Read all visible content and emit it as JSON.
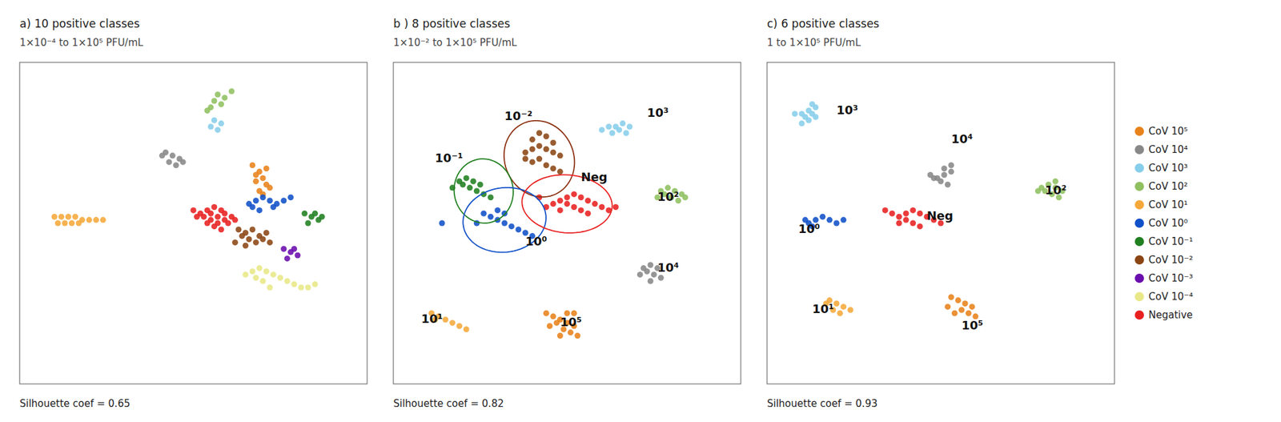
{
  "chart_data": [
    {
      "type": "scatter",
      "title": "a) 10 positive classes",
      "subtitle": "1×10⁻⁴ to 1×10⁵ PFU/mL",
      "note": "Silhouette coef  = 0.65",
      "xlim": [
        0,
        1
      ],
      "ylim": [
        0,
        1
      ],
      "tick_labels": false,
      "grid": false,
      "legend": "right",
      "series": [
        {
          "name": "CoV 10⁵",
          "color": "#E8821A",
          "x": [
            0.67,
            0.69,
            0.7,
            0.68,
            0.71,
            0.69,
            0.7,
            0.72,
            0.68,
            0.71
          ],
          "values": [
            0.68,
            0.66,
            0.64,
            0.63,
            0.62,
            0.6,
            0.59,
            0.61,
            0.65,
            0.67
          ]
        },
        {
          "name": "CoV 10⁴",
          "color": "#888888",
          "x": [
            0.42,
            0.44,
            0.46,
            0.43,
            0.45,
            0.47,
            0.41
          ],
          "values": [
            0.72,
            0.71,
            0.7,
            0.69,
            0.68,
            0.69,
            0.71
          ]
        },
        {
          "name": "CoV 10³",
          "color": "#87CEEB",
          "x": [
            0.56,
            0.58,
            0.55,
            0.57
          ],
          "values": [
            0.82,
            0.81,
            0.8,
            0.79
          ]
        },
        {
          "name": "CoV 10²",
          "color": "#90C060",
          "x": [
            0.57,
            0.59,
            0.56,
            0.58,
            0.55,
            0.61,
            0.54
          ],
          "values": [
            0.9,
            0.89,
            0.88,
            0.87,
            0.86,
            0.91,
            0.85
          ]
        },
        {
          "name": "CoV 10¹",
          "color": "#F5A83A",
          "x": [
            0.1,
            0.12,
            0.14,
            0.16,
            0.18,
            0.2,
            0.22,
            0.24,
            0.11,
            0.13,
            0.15,
            0.17
          ],
          "values": [
            0.52,
            0.52,
            0.52,
            0.52,
            0.51,
            0.51,
            0.51,
            0.51,
            0.5,
            0.5,
            0.5,
            0.5
          ]
        },
        {
          "name": "CoV 10⁰",
          "color": "#1050C8",
          "x": [
            0.66,
            0.68,
            0.7,
            0.72,
            0.74,
            0.76,
            0.67,
            0.69,
            0.73,
            0.78
          ],
          "values": [
            0.56,
            0.57,
            0.58,
            0.57,
            0.56,
            0.57,
            0.55,
            0.54,
            0.55,
            0.58
          ]
        },
        {
          "name": "CoV 10⁻¹",
          "color": "#208020",
          "x": [
            0.82,
            0.84,
            0.86,
            0.83,
            0.85,
            0.87
          ],
          "values": [
            0.53,
            0.52,
            0.51,
            0.5,
            0.53,
            0.52
          ]
        },
        {
          "name": "CoV 10⁻²",
          "color": "#8B4513",
          "x": [
            0.65,
            0.67,
            0.69,
            0.66,
            0.68,
            0.7,
            0.64,
            0.65,
            0.63,
            0.71,
            0.72,
            0.62
          ],
          "values": [
            0.47,
            0.48,
            0.46,
            0.45,
            0.44,
            0.45,
            0.46,
            0.43,
            0.48,
            0.47,
            0.44,
            0.44
          ]
        },
        {
          "name": "CoV 10⁻³",
          "color": "#6A0DAD",
          "x": [
            0.76,
            0.78,
            0.8,
            0.77,
            0.79
          ],
          "values": [
            0.42,
            0.41,
            0.4,
            0.39,
            0.42
          ]
        },
        {
          "name": "CoV 10⁻⁴",
          "color": "#E8E888",
          "x": [
            0.67,
            0.69,
            0.71,
            0.73,
            0.75,
            0.77,
            0.79,
            0.81,
            0.68,
            0.7,
            0.83,
            0.65,
            0.72,
            0.85
          ],
          "values": [
            0.35,
            0.36,
            0.35,
            0.34,
            0.33,
            0.32,
            0.31,
            0.3,
            0.33,
            0.32,
            0.3,
            0.34,
            0.3,
            0.31
          ]
        },
        {
          "name": "Negative",
          "color": "#E82020",
          "x": [
            0.54,
            0.56,
            0.58,
            0.55,
            0.57,
            0.59,
            0.61,
            0.53,
            0.55,
            0.57,
            0.59,
            0.6,
            0.52,
            0.54,
            0.56,
            0.58,
            0.5,
            0.62,
            0.51
          ],
          "values": [
            0.54,
            0.55,
            0.54,
            0.53,
            0.52,
            0.53,
            0.52,
            0.52,
            0.51,
            0.5,
            0.51,
            0.5,
            0.53,
            0.5,
            0.49,
            0.48,
            0.54,
            0.51,
            0.52
          ]
        }
      ]
    },
    {
      "type": "scatter",
      "title": "b ) 8 positive classes",
      "subtitle": "1×10⁻² to 1×10⁵ PFU/mL",
      "note": "Silhouette coef  = 0.82",
      "xlim": [
        0,
        1
      ],
      "ylim": [
        0,
        1
      ],
      "tick_labels": false,
      "grid": false,
      "annotations": [
        {
          "text": "10⁻²",
          "x": 0.32,
          "y": 0.83
        },
        {
          "text": "10⁻¹",
          "x": 0.12,
          "y": 0.7
        },
        {
          "text": "10⁰",
          "x": 0.38,
          "y": 0.44
        },
        {
          "text": "10¹",
          "x": 0.08,
          "y": 0.2
        },
        {
          "text": "10²",
          "x": 0.76,
          "y": 0.58
        },
        {
          "text": "10³",
          "x": 0.73,
          "y": 0.84
        },
        {
          "text": "10⁴",
          "x": 0.76,
          "y": 0.36
        },
        {
          "text": "10⁵",
          "x": 0.48,
          "y": 0.19
        },
        {
          "text": "Neg",
          "x": 0.54,
          "y": 0.64
        }
      ],
      "ellipses": [
        {
          "cx": 0.42,
          "cy": 0.7,
          "w": 0.2,
          "h": 0.24,
          "color": "#8B3010",
          "angle": 15
        },
        {
          "cx": 0.26,
          "cy": 0.6,
          "w": 0.17,
          "h": 0.2,
          "color": "#208020",
          "angle": 5
        },
        {
          "cx": 0.32,
          "cy": 0.51,
          "w": 0.24,
          "h": 0.2,
          "color": "#1050C8",
          "angle": 10
        },
        {
          "cx": 0.5,
          "cy": 0.56,
          "w": 0.26,
          "h": 0.18,
          "color": "#E82020",
          "angle": -5
        }
      ],
      "series": [
        {
          "name": "CoV 10⁵",
          "color": "#E8821A",
          "x": [
            0.44,
            0.46,
            0.48,
            0.5,
            0.52,
            0.47,
            0.49,
            0.51,
            0.53,
            0.45,
            0.5,
            0.48,
            0.52
          ],
          "values": [
            0.22,
            0.21,
            0.2,
            0.19,
            0.18,
            0.19,
            0.17,
            0.16,
            0.15,
            0.18,
            0.22,
            0.15,
            0.22
          ]
        },
        {
          "name": "CoV 10⁴",
          "color": "#888888",
          "x": [
            0.72,
            0.74,
            0.76,
            0.73,
            0.75,
            0.77,
            0.74,
            0.71
          ],
          "values": [
            0.36,
            0.37,
            0.36,
            0.35,
            0.34,
            0.33,
            0.32,
            0.34
          ]
        },
        {
          "name": "CoV 10³",
          "color": "#87CEEB",
          "x": [
            0.64,
            0.66,
            0.68,
            0.65,
            0.67,
            0.63,
            0.62,
            0.6
          ],
          "values": [
            0.8,
            0.81,
            0.8,
            0.79,
            0.78,
            0.78,
            0.8,
            0.79
          ]
        },
        {
          "name": "CoV 10²",
          "color": "#90C060",
          "x": [
            0.77,
            0.79,
            0.81,
            0.83,
            0.78,
            0.8,
            0.82,
            0.84,
            0.76
          ],
          "values": [
            0.6,
            0.61,
            0.6,
            0.59,
            0.59,
            0.58,
            0.57,
            0.58,
            0.58
          ]
        },
        {
          "name": "CoV 10¹",
          "color": "#F5A83A",
          "x": [
            0.11,
            0.13,
            0.15,
            0.17,
            0.19,
            0.21,
            0.12
          ],
          "values": [
            0.22,
            0.21,
            0.2,
            0.19,
            0.18,
            0.17,
            0.2
          ]
        },
        {
          "name": "CoV 10⁰",
          "color": "#1050C8",
          "x": [
            0.28,
            0.3,
            0.32,
            0.34,
            0.36,
            0.38,
            0.26,
            0.4,
            0.24,
            0.3,
            0.32,
            0.14
          ],
          "values": [
            0.52,
            0.51,
            0.5,
            0.49,
            0.48,
            0.47,
            0.53,
            0.46,
            0.5,
            0.54,
            0.53,
            0.5
          ]
        },
        {
          "name": "CoV 10⁻¹",
          "color": "#208020",
          "x": [
            0.2,
            0.22,
            0.24,
            0.26,
            0.28,
            0.19,
            0.17,
            0.21,
            0.23,
            0.25
          ],
          "values": [
            0.62,
            0.61,
            0.6,
            0.59,
            0.58,
            0.63,
            0.61,
            0.64,
            0.63,
            0.62
          ]
        },
        {
          "name": "CoV 10⁻²",
          "color": "#8B4513",
          "x": [
            0.38,
            0.4,
            0.42,
            0.44,
            0.46,
            0.48,
            0.4,
            0.42,
            0.44,
            0.46,
            0.38,
            0.4,
            0.42,
            0.44,
            0.46,
            0.48
          ],
          "values": [
            0.72,
            0.73,
            0.74,
            0.73,
            0.72,
            0.71,
            0.76,
            0.78,
            0.77,
            0.75,
            0.7,
            0.69,
            0.7,
            0.68,
            0.67,
            0.66
          ]
        },
        {
          "name": "Negative",
          "color": "#E82020",
          "x": [
            0.48,
            0.5,
            0.52,
            0.54,
            0.56,
            0.58,
            0.6,
            0.62,
            0.64,
            0.46,
            0.5,
            0.52,
            0.54,
            0.56,
            0.48,
            0.42,
            0.44
          ],
          "values": [
            0.57,
            0.58,
            0.59,
            0.58,
            0.57,
            0.56,
            0.55,
            0.54,
            0.55,
            0.56,
            0.56,
            0.55,
            0.54,
            0.53,
            0.54,
            0.58,
            0.55
          ]
        }
      ]
    },
    {
      "type": "scatter",
      "title": "c) 6 positive classes",
      "subtitle": "1 to 1×10⁵ PFU/mL",
      "note": "Silhouette coef  = 0.93",
      "xlim": [
        0,
        1
      ],
      "ylim": [
        0,
        1
      ],
      "tick_labels": false,
      "grid": false,
      "annotations": [
        {
          "text": "10³",
          "x": 0.2,
          "y": 0.85
        },
        {
          "text": "10⁴",
          "x": 0.53,
          "y": 0.76
        },
        {
          "text": "10²",
          "x": 0.8,
          "y": 0.6
        },
        {
          "text": "10⁰",
          "x": 0.09,
          "y": 0.48
        },
        {
          "text": "Neg",
          "x": 0.46,
          "y": 0.52
        },
        {
          "text": "10¹",
          "x": 0.13,
          "y": 0.23
        },
        {
          "text": "10⁵",
          "x": 0.56,
          "y": 0.18
        }
      ],
      "series": [
        {
          "name": "CoV 10⁵",
          "color": "#E8821A",
          "x": [
            0.53,
            0.55,
            0.57,
            0.59,
            0.56,
            0.58,
            0.6,
            0.54,
            0.52
          ],
          "values": [
            0.27,
            0.26,
            0.25,
            0.24,
            0.23,
            0.22,
            0.21,
            0.22,
            0.24
          ]
        },
        {
          "name": "CoV 10⁴",
          "color": "#888888",
          "x": [
            0.49,
            0.51,
            0.53,
            0.5,
            0.52,
            0.48,
            0.51,
            0.53,
            0.47
          ],
          "values": [
            0.64,
            0.65,
            0.66,
            0.63,
            0.62,
            0.64,
            0.67,
            0.68,
            0.65
          ]
        },
        {
          "name": "CoV 10³",
          "color": "#87CEEB",
          "x": [
            0.1,
            0.12,
            0.14,
            0.11,
            0.13,
            0.12,
            0.14,
            0.1,
            0.13,
            0.08
          ],
          "values": [
            0.84,
            0.85,
            0.86,
            0.83,
            0.84,
            0.82,
            0.83,
            0.81,
            0.87,
            0.84
          ]
        },
        {
          "name": "CoV 10²",
          "color": "#90C060",
          "x": [
            0.79,
            0.81,
            0.83,
            0.8,
            0.82,
            0.84,
            0.85,
            0.78,
            0.83
          ],
          "values": [
            0.61,
            0.62,
            0.61,
            0.6,
            0.59,
            0.58,
            0.6,
            0.6,
            0.63
          ]
        },
        {
          "name": "CoV 10¹",
          "color": "#F5A83A",
          "x": [
            0.18,
            0.2,
            0.22,
            0.24,
            0.19,
            0.21,
            0.17
          ],
          "values": [
            0.26,
            0.25,
            0.24,
            0.23,
            0.23,
            0.22,
            0.25
          ]
        },
        {
          "name": "CoV 10⁰",
          "color": "#1050C8",
          "x": [
            0.12,
            0.14,
            0.16,
            0.18,
            0.2,
            0.22,
            0.13,
            0.11
          ],
          "values": [
            0.5,
            0.51,
            0.52,
            0.51,
            0.5,
            0.51,
            0.49,
            0.51
          ]
        },
        {
          "name": "Negative",
          "color": "#E82020",
          "x": [
            0.38,
            0.4,
            0.42,
            0.44,
            0.46,
            0.48,
            0.5,
            0.36,
            0.4,
            0.42,
            0.44,
            0.34,
            0.38
          ],
          "values": [
            0.52,
            0.53,
            0.54,
            0.53,
            0.52,
            0.51,
            0.5,
            0.53,
            0.51,
            0.5,
            0.49,
            0.54,
            0.5
          ]
        }
      ]
    }
  ]
}
